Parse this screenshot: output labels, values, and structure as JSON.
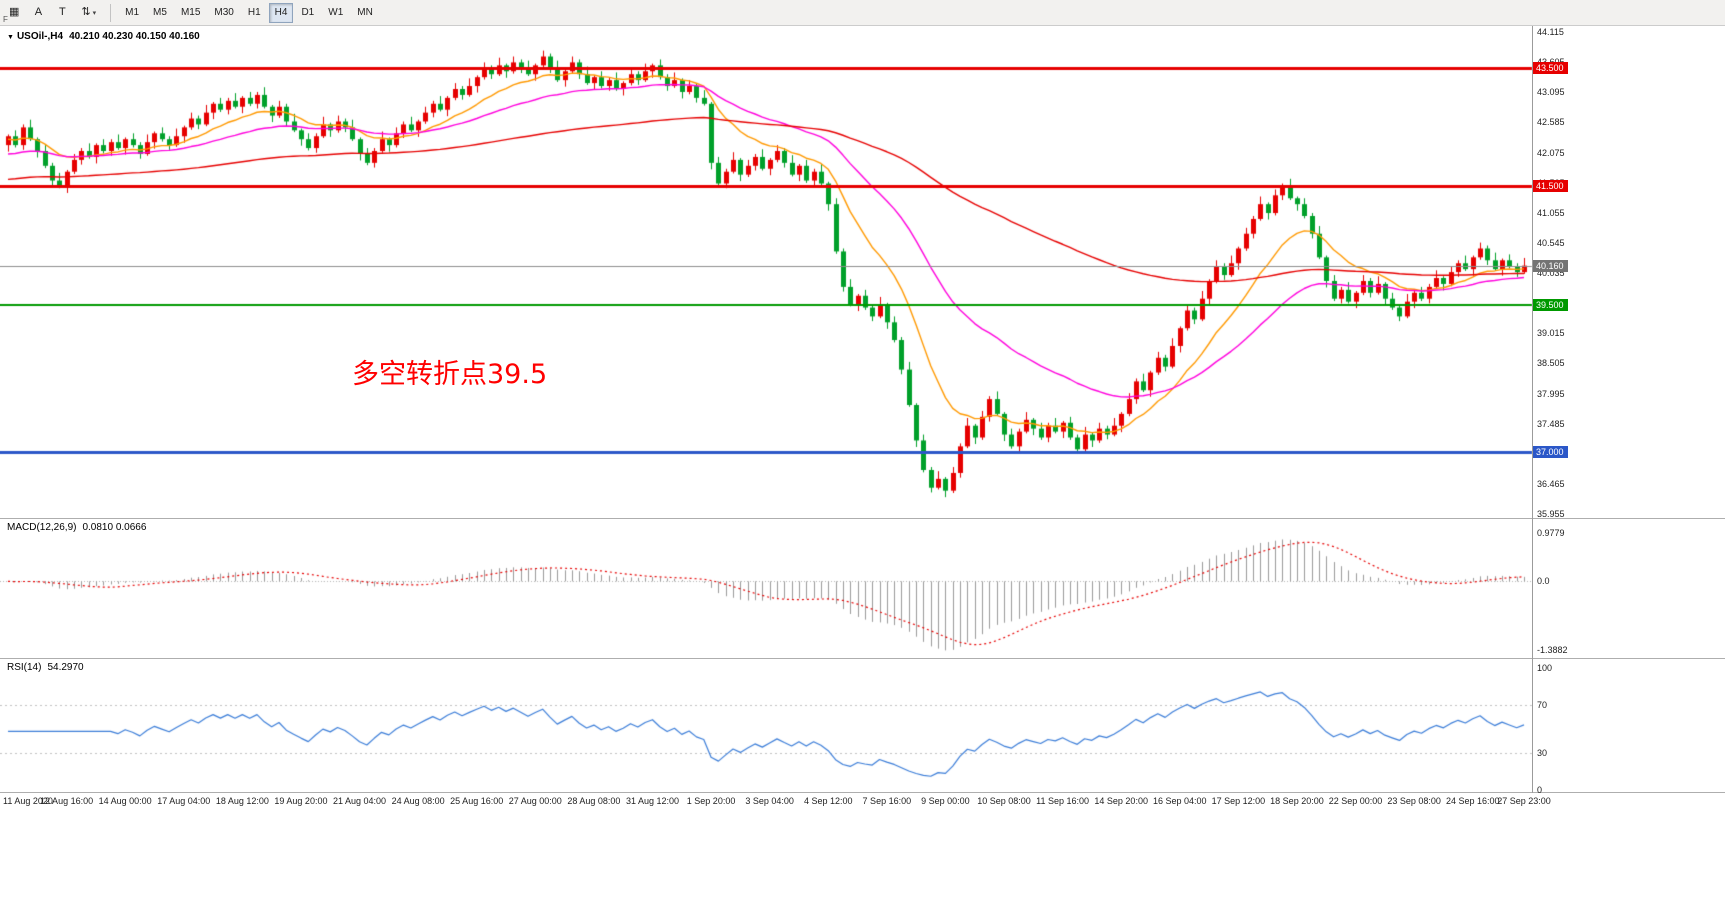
{
  "toolbar": {
    "f_label": "F",
    "dropdown_caret": "▾",
    "tools": [
      {
        "name": "templates",
        "glyph": "▦",
        "caret": false
      },
      {
        "name": "arrow-tool",
        "glyph": "A",
        "caret": false
      },
      {
        "name": "text-tool",
        "glyph": "T",
        "caret": false
      },
      {
        "name": "scale-tool",
        "glyph": "⇅",
        "caret": true
      }
    ],
    "timeframes": [
      "M1",
      "M5",
      "M15",
      "M30",
      "H1",
      "H4",
      "D1",
      "W1",
      "MN"
    ],
    "active_timeframe": "H4"
  },
  "chart": {
    "symbol_header": {
      "caret": "▼",
      "symbol": "USOil-,H4",
      "ohlc": "40.210 40.230 40.150 40.160"
    },
    "annotation": {
      "text": "多空转折点39.5",
      "color": "#ff0000"
    },
    "macd_header": {
      "name": "MACD(12,26,9)",
      "values": "0.0810 0.0666"
    },
    "rsi_header": {
      "name": "RSI(14)",
      "values": "54.2970"
    }
  },
  "chart_data": {
    "type": "candlestick",
    "title": "USOil-,H4 40.210 40.230 40.150 40.160",
    "symbol": "USOil",
    "timeframe": "H4",
    "y_range": [
      35.955,
      44.115
    ],
    "price_axis_labels": [
      "44.115",
      "43.605",
      "43.095",
      "42.585",
      "42.075",
      "41.565",
      "41.055",
      "40.545",
      "40.035",
      "39.525",
      "39.015",
      "38.505",
      "37.995",
      "37.485",
      "36.975",
      "36.465",
      "35.955"
    ],
    "colors": {
      "up": "#e60000",
      "down": "#00a02a",
      "background": "#ffffff"
    },
    "first_open": 42.2,
    "closes": [
      42.35,
      42.2,
      42.5,
      42.3,
      42.1,
      41.85,
      41.6,
      41.5,
      41.75,
      41.95,
      42.1,
      42.0,
      42.2,
      42.1,
      42.25,
      42.15,
      42.3,
      42.2,
      42.05,
      42.25,
      42.4,
      42.3,
      42.2,
      42.35,
      42.5,
      42.65,
      42.55,
      42.75,
      42.9,
      42.8,
      42.95,
      42.85,
      43.0,
      42.9,
      43.05,
      42.85,
      42.7,
      42.85,
      42.6,
      42.45,
      42.3,
      42.15,
      42.35,
      42.55,
      42.45,
      42.6,
      42.5,
      42.3,
      42.05,
      41.9,
      42.1,
      42.3,
      42.2,
      42.4,
      42.55,
      42.45,
      42.6,
      42.75,
      42.9,
      42.8,
      43.0,
      43.15,
      43.05,
      43.2,
      43.35,
      43.5,
      43.4,
      43.55,
      43.45,
      43.6,
      43.5,
      43.4,
      43.55,
      43.7,
      43.5,
      43.3,
      43.45,
      43.6,
      43.4,
      43.25,
      43.35,
      43.2,
      43.3,
      43.15,
      43.25,
      43.4,
      43.3,
      43.45,
      43.55,
      43.35,
      43.2,
      43.3,
      43.1,
      43.2,
      43.0,
      42.9,
      41.9,
      41.55,
      41.75,
      41.95,
      41.7,
      41.85,
      42.0,
      41.8,
      41.95,
      42.1,
      41.9,
      41.7,
      41.85,
      41.6,
      41.75,
      41.55,
      41.2,
      40.4,
      39.8,
      39.5,
      39.65,
      39.45,
      39.3,
      39.5,
      39.2,
      38.9,
      38.4,
      37.8,
      37.2,
      36.7,
      36.4,
      36.55,
      36.35,
      36.65,
      37.1,
      37.45,
      37.25,
      37.6,
      37.9,
      37.65,
      37.3,
      37.1,
      37.35,
      37.55,
      37.4,
      37.25,
      37.45,
      37.35,
      37.5,
      37.25,
      37.05,
      37.3,
      37.2,
      37.4,
      37.3,
      37.45,
      37.65,
      37.9,
      38.2,
      38.05,
      38.35,
      38.6,
      38.45,
      38.8,
      39.1,
      39.4,
      39.25,
      39.6,
      39.9,
      40.15,
      40.0,
      40.2,
      40.45,
      40.7,
      40.95,
      41.2,
      41.05,
      41.35,
      41.5,
      41.3,
      41.2,
      41.0,
      40.7,
      40.3,
      39.9,
      39.6,
      39.75,
      39.55,
      39.7,
      39.9,
      39.7,
      39.85,
      39.6,
      39.45,
      39.3,
      39.55,
      39.7,
      39.6,
      39.8,
      39.95,
      39.85,
      40.05,
      40.2,
      40.1,
      40.3,
      40.45,
      40.25,
      40.1,
      40.25,
      40.15,
      40.05,
      40.16
    ],
    "wick_high_pattern": [
      0.03,
      0.1,
      0.05,
      0.13
    ],
    "wick_low_pattern": [
      0.11,
      0.04,
      0.08,
      0.03
    ],
    "moving_averages": [
      {
        "type": "ema",
        "period": 13,
        "color": "#ff9900",
        "seed": 42.3
      },
      {
        "type": "ema",
        "period": 34,
        "color": "#ff00dd",
        "seed": 42.05
      },
      {
        "type": "ema",
        "period": 120,
        "color": "#e60000",
        "seed": 41.62
      }
    ],
    "levels": [
      {
        "value": 43.5,
        "label": "43.500",
        "color": "#e60000",
        "width": 3,
        "tag_bg": "#e60000"
      },
      {
        "value": 41.5,
        "label": "41.500",
        "color": "#e60000",
        "width": 3,
        "tag_bg": "#e60000"
      },
      {
        "value": 40.16,
        "label": "40.160",
        "color": "#8c8c8c",
        "width": 1,
        "tag_bg": "#737373"
      },
      {
        "value": 39.5,
        "label": "39.500",
        "color": "#009900",
        "width": 2,
        "tag_bg": "#009900"
      },
      {
        "value": 37.0,
        "label": "37.000",
        "color": "#2b57c8",
        "width": 3,
        "tag_bg": "#2b57c8"
      }
    ],
    "macd": {
      "fast": 12,
      "slow": 26,
      "signal": 9,
      "display": "0.0810 0.0666",
      "histogram_color": "#9a9a9a",
      "signal_color": "#e60000",
      "axis_labels": [
        "0.9779",
        "0.0",
        "-1.3882"
      ],
      "axis_values": [
        0.9779,
        0.0,
        -1.3882
      ],
      "axis_max": 0.9779,
      "axis_min": -1.3882
    },
    "rsi": {
      "period": 14,
      "display": "54.2970",
      "color": "#3b7dd8",
      "level_lines": [
        70,
        30
      ],
      "axis_labels": [
        "100",
        "70",
        "30",
        "0"
      ],
      "axis_values": [
        100,
        70,
        30,
        0
      ],
      "axis_max": 100,
      "axis_min": 0
    },
    "time_axis": {
      "labels": [
        "11 Aug 2020",
        "12 Aug 16:00",
        "14 Aug 00:00",
        "17 Aug 04:00",
        "18 Aug 12:00",
        "19 Aug 20:00",
        "21 Aug 04:00",
        "24 Aug 08:00",
        "25 Aug 16:00",
        "27 Aug 00:00",
        "28 Aug 08:00",
        "31 Aug 12:00",
        "1 Sep 20:00",
        "3 Sep 04:00",
        "4 Sep 12:00",
        "7 Sep 16:00",
        "9 Sep 00:00",
        "10 Sep 08:00",
        "11 Sep 16:00",
        "14 Sep 20:00",
        "16 Sep 04:00",
        "17 Sep 12:00",
        "18 Sep 20:00",
        "22 Sep 00:00",
        "23 Sep 08:00",
        "24 Sep 16:00",
        "27 Sep 23:00"
      ],
      "bar_positions": [
        0,
        8,
        16,
        24,
        32,
        40,
        48,
        56,
        64,
        72,
        80,
        88,
        96,
        104,
        112,
        120,
        128,
        136,
        144,
        152,
        160,
        168,
        176,
        184,
        192,
        200,
        207
      ]
    }
  }
}
